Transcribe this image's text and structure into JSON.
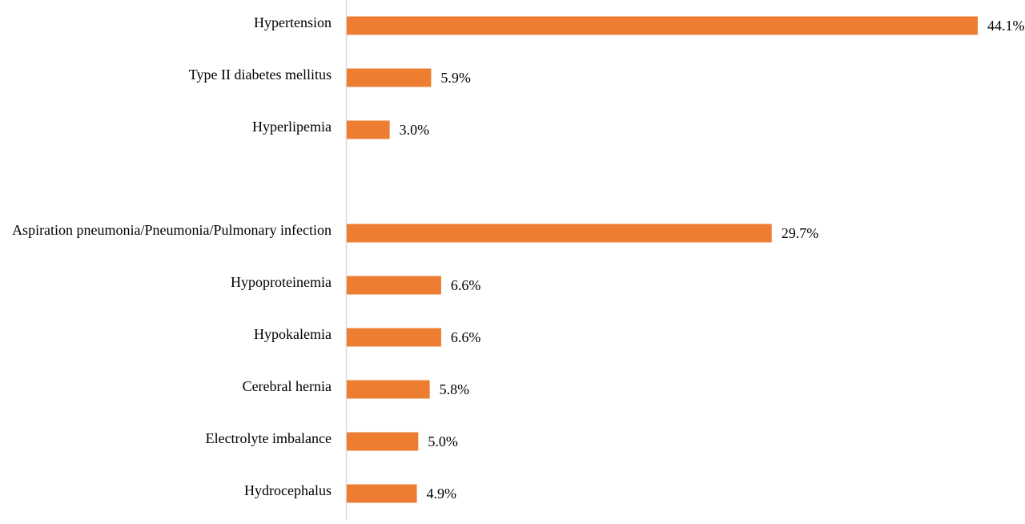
{
  "chart_data": {
    "type": "bar",
    "orientation": "horizontal",
    "categories": [
      "Hypertension",
      "Type II diabetes mellitus",
      "Hyperlipemia",
      "Aspiration pneumonia/Pneumonia/Pulmonary infection",
      "Hypoproteinemia",
      "Hypokalemia",
      "Cerebral hernia",
      "Electrolyte imbalance",
      "Hydrocephalus"
    ],
    "values": [
      44.1,
      5.9,
      3.0,
      29.7,
      6.6,
      6.6,
      5.8,
      5.0,
      4.9
    ],
    "value_labels": [
      "44.1%",
      "5.9%",
      "3.0%",
      "29.7%",
      "6.6%",
      "6.6%",
      "5.8%",
      "5.0%",
      "4.9%"
    ],
    "groups": [
      {
        "categories": [
          "Hypertension",
          "Type II diabetes mellitus",
          "Hyperlipemia"
        ]
      },
      {
        "categories": [
          "Aspiration pneumonia/Pneumonia/Pulmonary infection",
          "Hypoproteinemia",
          "Hypokalemia",
          "Cerebral hernia",
          "Electrolyte imbalance",
          "Hydrocephalus"
        ]
      }
    ],
    "title": "",
    "xlabel": "",
    "ylabel": "",
    "xlim": [
      0,
      44.1
    ],
    "unit": "%",
    "grid": false,
    "legend": "none",
    "bar_color": "#ED7D31",
    "axis_color": "#D9D9D9"
  }
}
